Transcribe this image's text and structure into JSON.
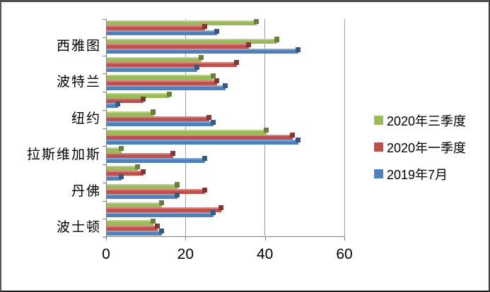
{
  "chart_data": {
    "type": "bar",
    "orientation": "horizontal",
    "title": "",
    "category_order": "top-to-bottom",
    "categories": [
      "",
      "西雅图",
      "",
      "波特兰",
      "",
      "纽约",
      "",
      "拉斯维加斯",
      "",
      "丹佛",
      "",
      "波士顿"
    ],
    "series": [
      {
        "name": "2020年三季度",
        "color": "#9BBB59",
        "values": [
          38,
          43,
          24,
          27,
          16,
          12,
          40.5,
          4,
          8,
          18,
          14,
          12
        ]
      },
      {
        "name": "2020年一季度",
        "color": "#C0504D",
        "values": [
          25,
          36,
          33,
          28,
          9.5,
          26,
          47,
          17,
          9.5,
          25,
          29,
          13
        ]
      },
      {
        "name": "2019年7月",
        "color": "#4F81BD",
        "values": [
          28,
          48.5,
          23,
          30,
          3,
          27,
          48.5,
          25,
          4,
          18,
          27,
          14
        ]
      }
    ],
    "xaxis": {
      "min": 0,
      "max": 60,
      "ticks": [
        0,
        20,
        40,
        60
      ]
    },
    "grid": true,
    "legend_position": "right"
  },
  "colors": {
    "axis": "#808080",
    "gridline": "#9e9e9e",
    "background": "#ffffff",
    "text": "#000000"
  }
}
